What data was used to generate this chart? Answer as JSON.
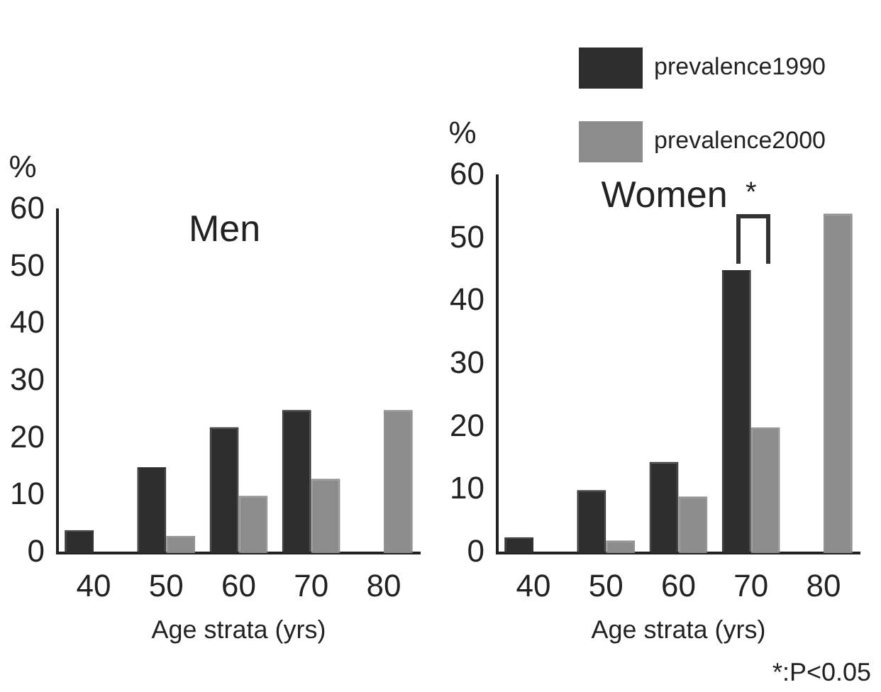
{
  "chart_data": [
    {
      "type": "bar",
      "title": "Men",
      "ylabel": "%",
      "xlabel": "Age strata (yrs)",
      "categories": [
        "40",
        "50",
        "60",
        "70",
        "80"
      ],
      "series": [
        {
          "color": "#2e2e2e",
          "values": [
            4,
            15,
            22,
            25,
            0
          ]
        },
        {
          "color": "#8c8c8c",
          "values": [
            0,
            3,
            10,
            13,
            25
          ]
        }
      ],
      "ylim": [
        0,
        60
      ],
      "yticks": [
        0,
        10,
        20,
        30,
        40,
        50,
        60
      ],
      "grid": false,
      "legend": false
    },
    {
      "type": "bar",
      "title": "Women",
      "ylabel": "%",
      "xlabel": "Age strata (yrs)",
      "categories": [
        "40",
        "50",
        "60",
        "70",
        "80"
      ],
      "series": [
        {
          "name": "prevalence1990",
          "color": "#2e2e2e",
          "values": [
            2.5,
            10,
            14.5,
            45,
            0
          ]
        },
        {
          "name": "prevalence2000",
          "color": "#8c8c8c",
          "values": [
            0,
            2,
            9,
            20,
            54
          ]
        }
      ],
      "ylim": [
        0,
        60
      ],
      "yticks": [
        0,
        10,
        20,
        30,
        40,
        50,
        60
      ],
      "grid": false,
      "legend": "top right",
      "annotations": [
        {
          "text": "*",
          "x": "70",
          "y": 45
        },
        "*:P<0.05"
      ]
    }
  ]
}
